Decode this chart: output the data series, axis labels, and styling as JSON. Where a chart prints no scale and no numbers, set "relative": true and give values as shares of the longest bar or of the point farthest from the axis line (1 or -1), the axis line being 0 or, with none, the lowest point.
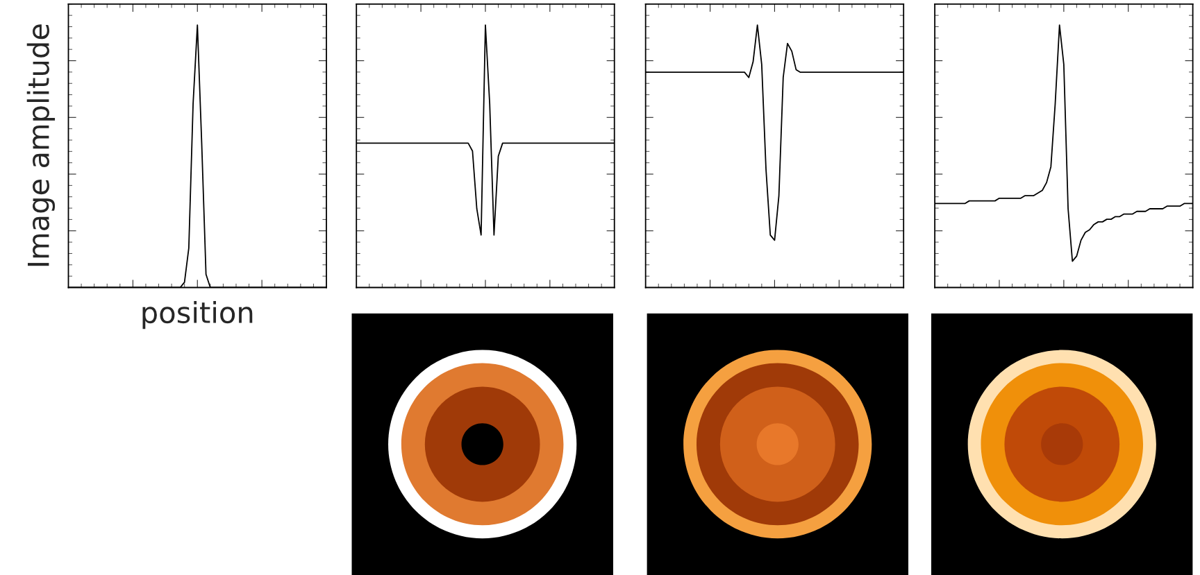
{
  "chart_data": [
    {
      "type": "line",
      "relative": true,
      "ylabel": "Image amplitude",
      "xlabel": "position",
      "tick_labels": false,
      "grid": false,
      "categories": [
        null,
        null,
        null,
        null,
        null,
        null,
        null,
        null,
        null,
        null,
        null,
        null,
        null,
        null,
        null,
        null,
        null,
        null,
        null,
        null,
        null,
        null,
        null,
        null,
        null,
        null,
        null,
        null,
        null,
        null,
        null,
        null,
        null,
        null,
        null,
        null,
        null,
        null,
        null,
        null,
        null,
        null,
        null,
        null,
        null,
        null,
        null,
        null,
        null,
        null,
        null,
        null,
        null,
        null,
        null,
        null,
        null,
        null,
        null,
        null,
        null
      ],
      "series": [
        {
          "color": "#000000",
          "values": [
            0,
            0,
            0,
            0,
            0,
            0,
            0,
            0,
            0,
            0,
            0,
            0,
            0,
            0,
            0,
            0,
            0,
            0,
            0,
            0,
            0,
            0,
            0,
            0,
            0,
            0,
            0,
            0.02,
            0.15,
            0.7,
            1.0,
            0.55,
            0.05,
            0,
            0,
            0,
            0,
            0,
            0,
            0,
            0,
            0,
            0,
            0,
            0,
            0,
            0,
            0,
            0,
            0,
            0,
            0,
            0,
            0,
            0,
            0,
            0,
            0,
            0,
            0,
            0
          ]
        }
      ]
    },
    {
      "type": "line",
      "relative": true,
      "tick_labels": false,
      "grid": false,
      "categories": [
        null,
        null,
        null,
        null,
        null,
        null,
        null,
        null,
        null,
        null,
        null,
        null,
        null,
        null,
        null,
        null,
        null,
        null,
        null,
        null,
        null,
        null,
        null,
        null,
        null,
        null,
        null,
        null,
        null,
        null,
        null,
        null,
        null,
        null,
        null,
        null,
        null,
        null,
        null,
        null,
        null,
        null,
        null,
        null,
        null,
        null,
        null,
        null,
        null,
        null,
        null,
        null,
        null,
        null,
        null,
        null,
        null,
        null,
        null,
        null,
        null
      ],
      "series": [
        {
          "color": "#000000",
          "values": [
            0.55,
            0.55,
            0.55,
            0.55,
            0.55,
            0.55,
            0.55,
            0.55,
            0.55,
            0.55,
            0.55,
            0.55,
            0.55,
            0.55,
            0.55,
            0.55,
            0.55,
            0.55,
            0.55,
            0.55,
            0.55,
            0.55,
            0.55,
            0.55,
            0.55,
            0.55,
            0.55,
            0.52,
            0.3,
            0.2,
            1.0,
            0.7,
            0.2,
            0.5,
            0.55,
            0.55,
            0.55,
            0.55,
            0.55,
            0.55,
            0.55,
            0.55,
            0.55,
            0.55,
            0.55,
            0.55,
            0.55,
            0.55,
            0.55,
            0.55,
            0.55,
            0.55,
            0.55,
            0.55,
            0.55,
            0.55,
            0.55,
            0.55,
            0.55,
            0.55,
            0.55
          ]
        }
      ]
    },
    {
      "type": "line",
      "relative": true,
      "tick_labels": false,
      "grid": false,
      "categories": [
        null,
        null,
        null,
        null,
        null,
        null,
        null,
        null,
        null,
        null,
        null,
        null,
        null,
        null,
        null,
        null,
        null,
        null,
        null,
        null,
        null,
        null,
        null,
        null,
        null,
        null,
        null,
        null,
        null,
        null,
        null,
        null,
        null,
        null,
        null,
        null,
        null,
        null,
        null,
        null,
        null,
        null,
        null,
        null,
        null,
        null,
        null,
        null,
        null,
        null,
        null,
        null,
        null,
        null,
        null,
        null,
        null,
        null,
        null,
        null,
        null
      ],
      "series": [
        {
          "color": "#000000",
          "values": [
            0.82,
            0.82,
            0.82,
            0.82,
            0.82,
            0.82,
            0.82,
            0.82,
            0.82,
            0.82,
            0.82,
            0.82,
            0.82,
            0.82,
            0.82,
            0.82,
            0.82,
            0.82,
            0.82,
            0.82,
            0.82,
            0.82,
            0.82,
            0.82,
            0.8,
            0.86,
            1.0,
            0.85,
            0.45,
            0.2,
            0.18,
            0.35,
            0.8,
            0.93,
            0.9,
            0.83,
            0.82,
            0.82,
            0.82,
            0.82,
            0.82,
            0.82,
            0.82,
            0.82,
            0.82,
            0.82,
            0.82,
            0.82,
            0.82,
            0.82,
            0.82,
            0.82,
            0.82,
            0.82,
            0.82,
            0.82,
            0.82,
            0.82,
            0.82,
            0.82,
            0.82
          ]
        }
      ]
    },
    {
      "type": "line",
      "relative": true,
      "tick_labels": false,
      "grid": false,
      "categories": [
        null,
        null,
        null,
        null,
        null,
        null,
        null,
        null,
        null,
        null,
        null,
        null,
        null,
        null,
        null,
        null,
        null,
        null,
        null,
        null,
        null,
        null,
        null,
        null,
        null,
        null,
        null,
        null,
        null,
        null,
        null,
        null,
        null,
        null,
        null,
        null,
        null,
        null,
        null,
        null,
        null,
        null,
        null,
        null,
        null,
        null,
        null,
        null,
        null,
        null,
        null,
        null,
        null,
        null,
        null,
        null,
        null,
        null,
        null,
        null,
        null
      ],
      "series": [
        {
          "color": "#000000",
          "values": [
            0.32,
            0.32,
            0.32,
            0.32,
            0.32,
            0.32,
            0.32,
            0.32,
            0.33,
            0.33,
            0.33,
            0.33,
            0.33,
            0.33,
            0.33,
            0.34,
            0.34,
            0.34,
            0.34,
            0.34,
            0.34,
            0.35,
            0.35,
            0.35,
            0.36,
            0.37,
            0.4,
            0.46,
            0.7,
            1.0,
            0.85,
            0.3,
            0.1,
            0.12,
            0.18,
            0.21,
            0.22,
            0.24,
            0.25,
            0.25,
            0.26,
            0.26,
            0.27,
            0.27,
            0.28,
            0.28,
            0.28,
            0.29,
            0.29,
            0.29,
            0.3,
            0.3,
            0.3,
            0.3,
            0.31,
            0.31,
            0.31,
            0.31,
            0.32,
            0.32,
            0.32
          ]
        }
      ]
    }
  ]
}
